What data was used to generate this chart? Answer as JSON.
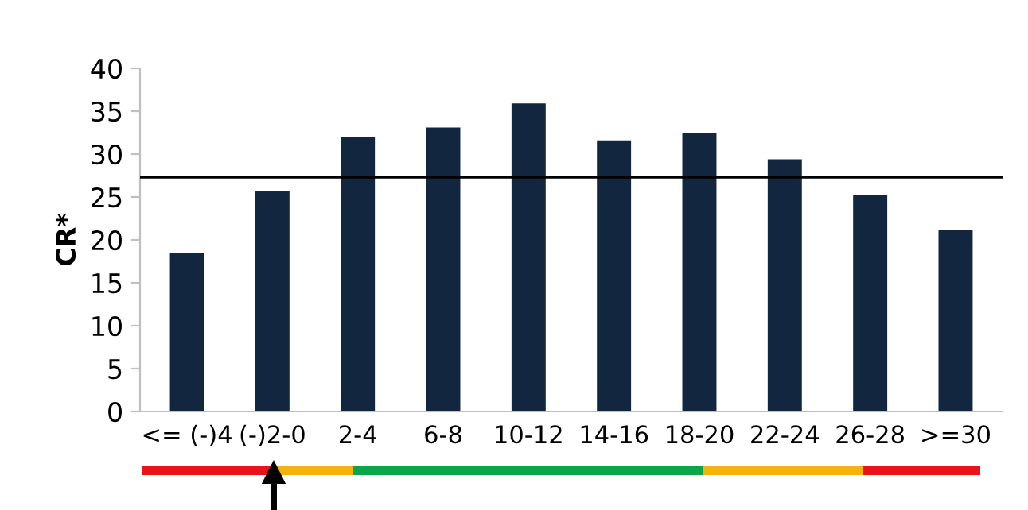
{
  "chart_data": {
    "type": "bar",
    "ylabel": "CR*",
    "categories": [
      "<= (-)4",
      "(-)2-0",
      "2-4",
      "6-8",
      "10-12",
      "14-16",
      "18-20",
      "22-24",
      "26-28",
      ">=30"
    ],
    "values": [
      18.5,
      25.7,
      32.0,
      33.1,
      35.9,
      31.6,
      32.4,
      29.4,
      25.2,
      21.1
    ],
    "color": "#12263f",
    "ylim": [
      0,
      40
    ],
    "yticks": [
      0,
      5,
      10,
      15,
      20,
      25,
      30,
      35,
      40
    ],
    "ref_lines": [
      {
        "axis": "y",
        "value": 27.3,
        "color": "#000000"
      }
    ],
    "grid": false,
    "legend": false
  }
}
